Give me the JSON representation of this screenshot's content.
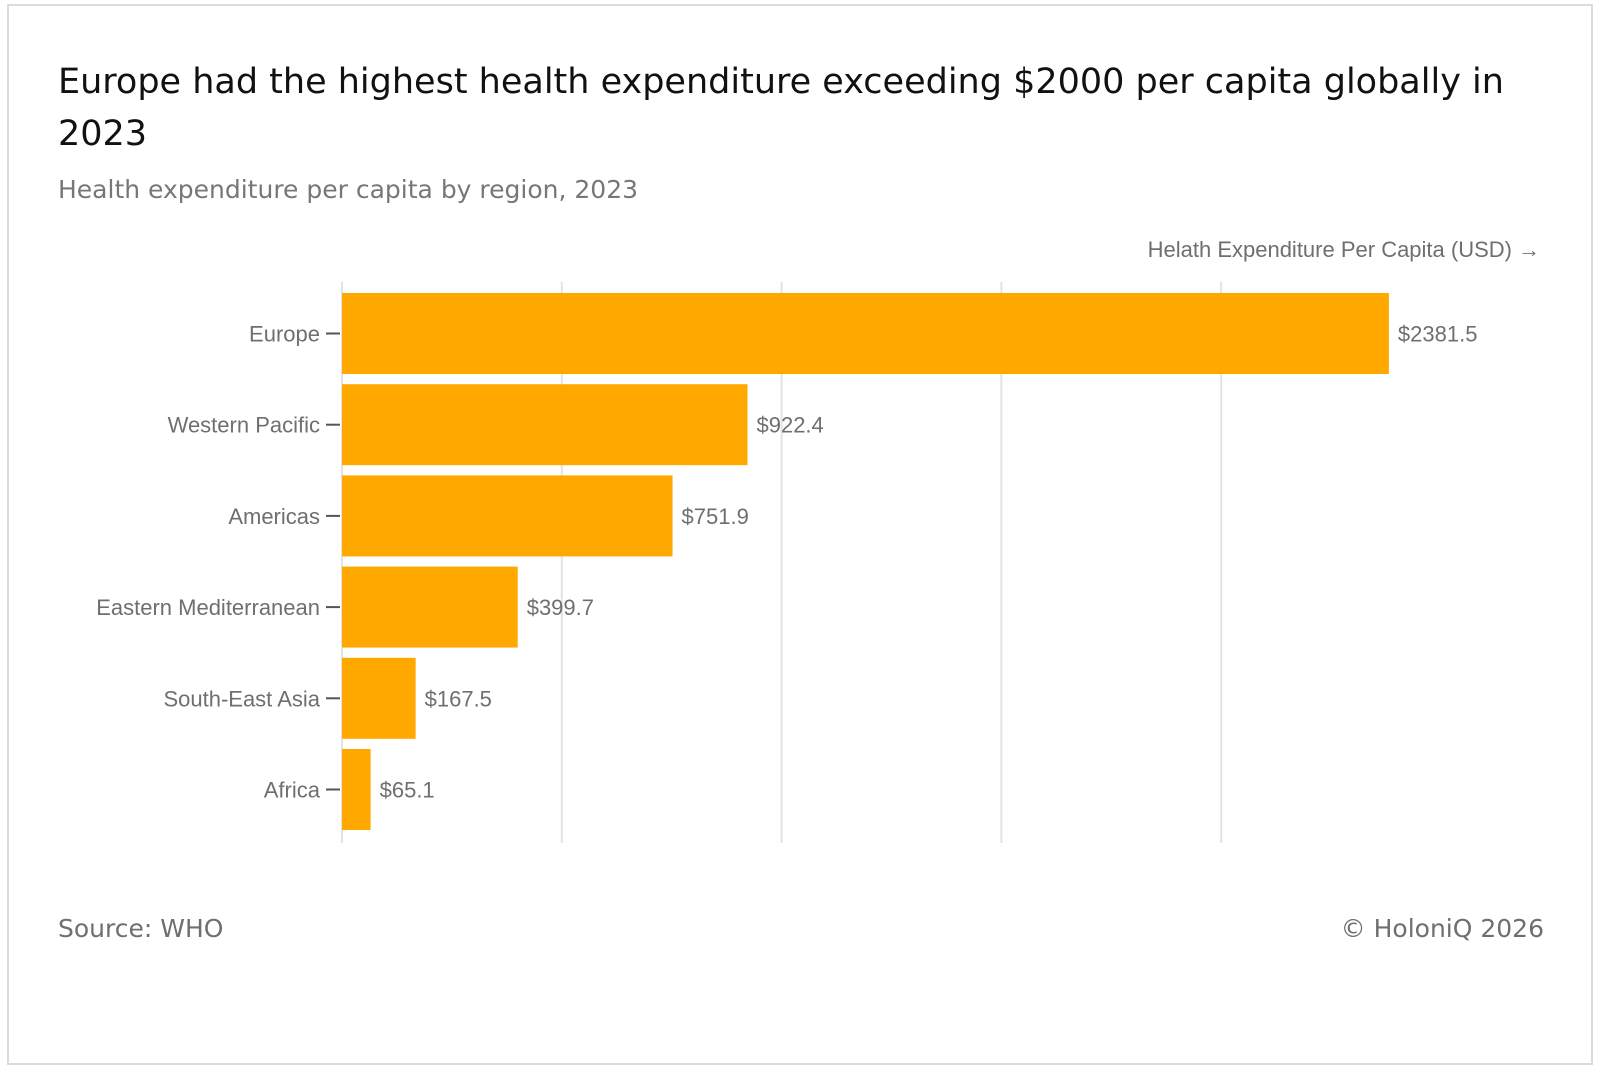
{
  "header": {
    "title": "Europe had the highest health expenditure exceeding $2000 per capita globally in 2023",
    "subtitle": "Health expenditure per capita by region, 2023"
  },
  "footer": {
    "source": "Source: WHO",
    "copyright": "© HoloniQ 2026"
  },
  "colors": {
    "bar": "#FFA800",
    "grid": "#e3e3e3",
    "label": "#6f6f6f",
    "axis": "#555555"
  },
  "chart_data": {
    "type": "bar",
    "orientation": "horizontal",
    "title": "Europe had the highest health expenditure exceeding $2000 per capita globally in 2023",
    "subtitle": "Health expenditure per capita by region, 2023",
    "xlabel": "Helath Expenditure Per Capita (USD)",
    "xlabel_arrow": "→",
    "ylabel": "",
    "categories": [
      "Europe",
      "Western Pacific",
      "Americas",
      "Eastern Mediterranean",
      "South-East Asia",
      "Africa"
    ],
    "values": [
      2381.5,
      922.4,
      751.9,
      399.7,
      167.5,
      65.1
    ],
    "data_labels": [
      "$2381.5",
      "$922.4",
      "$751.9",
      "$399.7",
      "$167.5",
      "$65.1"
    ],
    "xlim": [
      0,
      2500
    ],
    "gridlines_at": [
      0,
      500,
      1000,
      1500,
      2000
    ],
    "grid": true,
    "x_tick_labels_visible": false,
    "legend": "none"
  }
}
